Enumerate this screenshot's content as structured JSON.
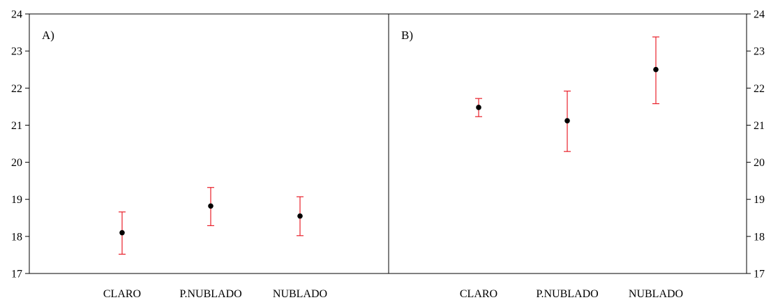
{
  "chart_data": [
    {
      "type": "scatter",
      "panel_label": "A)",
      "title": "",
      "xlabel": "",
      "ylabel": "",
      "categories": [
        "CLARO",
        "P.NUBLADO",
        "NUBLADO"
      ],
      "values": [
        18.1,
        18.82,
        18.55
      ],
      "error_low": [
        17.52,
        18.29,
        18.02
      ],
      "error_high": [
        18.66,
        19.32,
        19.07
      ],
      "ylim": [
        17,
        24
      ],
      "yticks": [
        "17",
        "18",
        "19",
        "20",
        "21",
        "22",
        "23",
        "24"
      ],
      "y_axis_side": "left",
      "grid": false,
      "point_color": "#000000",
      "error_color": "#e8202a"
    },
    {
      "type": "scatter",
      "panel_label": "B)",
      "title": "",
      "xlabel": "",
      "ylabel": "",
      "categories": [
        "CLARO",
        "P.NUBLADO",
        "NUBLADO"
      ],
      "values": [
        21.48,
        21.12,
        22.5
      ],
      "error_low": [
        21.23,
        20.29,
        21.58
      ],
      "error_high": [
        21.72,
        21.92,
        23.38
      ],
      "ylim": [
        17,
        24
      ],
      "yticks": [
        "17",
        "18",
        "19",
        "20",
        "21",
        "22",
        "23",
        "24"
      ],
      "y_axis_side": "right",
      "grid": false,
      "point_color": "#000000",
      "error_color": "#e8202a"
    }
  ]
}
